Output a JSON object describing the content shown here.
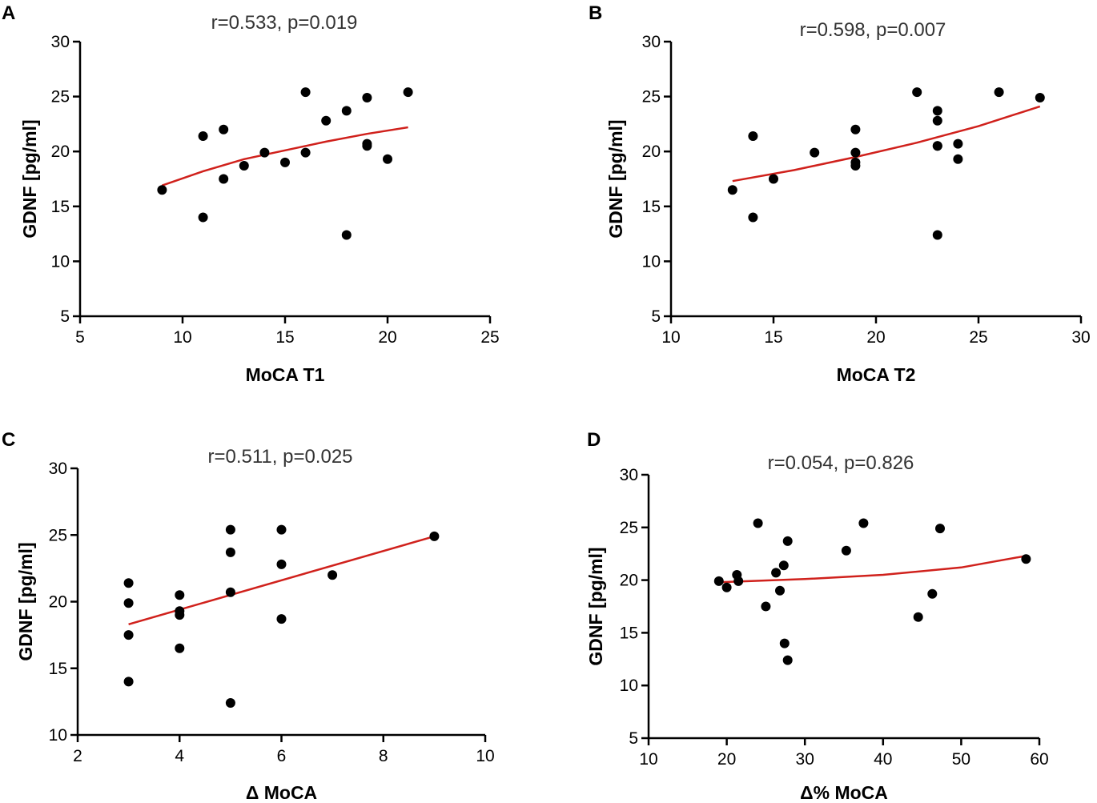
{
  "chart_data": [
    {
      "type": "scatter",
      "panel": "A",
      "title": "r=0.533, p=0.019",
      "xlabel": "MoCA  T1",
      "ylabel": "GDNF [pg/ml]",
      "xlim": [
        5,
        25
      ],
      "ylim": [
        5,
        30
      ],
      "xticks": [
        5,
        10,
        15,
        20,
        25
      ],
      "yticks": [
        5,
        10,
        15,
        20,
        25,
        30
      ],
      "x": [
        9,
        11,
        11,
        12,
        12,
        13,
        14,
        15,
        16,
        16,
        17,
        18,
        18,
        19,
        19,
        19,
        20,
        21
      ],
      "y": [
        16.5,
        21.4,
        14.0,
        22.0,
        17.5,
        18.7,
        19.9,
        19.0,
        25.4,
        19.9,
        22.8,
        23.7,
        12.4,
        24.9,
        20.5,
        20.7,
        19.3,
        25.4
      ],
      "fit": {
        "x": [
          9,
          11,
          13,
          15,
          17,
          19,
          21
        ],
        "y": [
          16.9,
          18.2,
          19.3,
          20.1,
          20.9,
          21.6,
          22.2
        ]
      }
    },
    {
      "type": "scatter",
      "panel": "B",
      "title": "r=0.598, p=0.007",
      "xlabel": "MoCA  T2",
      "ylabel": "GDNF [pg/ml]",
      "xlim": [
        10,
        30
      ],
      "ylim": [
        5,
        30
      ],
      "xticks": [
        10,
        15,
        20,
        25,
        30
      ],
      "yticks": [
        5,
        10,
        15,
        20,
        25,
        30
      ],
      "x": [
        13,
        14,
        14,
        15,
        17,
        19,
        19,
        19,
        19,
        22,
        23,
        23,
        23,
        23,
        23,
        24,
        24,
        26,
        28
      ],
      "y": [
        16.5,
        21.4,
        14.0,
        17.5,
        19.9,
        22.0,
        19.9,
        19.0,
        18.7,
        25.4,
        23.7,
        22.8,
        20.5,
        12.4,
        20.5,
        20.7,
        19.3,
        25.4,
        24.9
      ],
      "fit": {
        "x": [
          13,
          16,
          19,
          22,
          25,
          28
        ],
        "y": [
          17.3,
          18.3,
          19.5,
          20.8,
          22.3,
          24.1
        ]
      }
    },
    {
      "type": "scatter",
      "panel": "C",
      "title": "r=0.511, p=0.025",
      "xlabel": "Δ MoCA",
      "ylabel": "GDNF [pg/ml]",
      "xlim": [
        2,
        10
      ],
      "ylim": [
        10,
        30
      ],
      "xticks": [
        2,
        4,
        6,
        8,
        10
      ],
      "yticks": [
        10,
        15,
        20,
        25,
        30
      ],
      "x": [
        3,
        3,
        3,
        3,
        4,
        4,
        4,
        4,
        5,
        5,
        5,
        5,
        6,
        6,
        6,
        7,
        9
      ],
      "y": [
        21.4,
        19.9,
        17.5,
        14.0,
        20.5,
        19.3,
        19.0,
        16.5,
        25.4,
        23.7,
        20.7,
        12.4,
        25.4,
        22.8,
        18.7,
        22.0,
        24.9
      ],
      "fit": {
        "x": [
          3,
          9
        ],
        "y": [
          18.3,
          24.9
        ]
      }
    },
    {
      "type": "scatter",
      "panel": "D",
      "title": "r=0.054, p=0.826",
      "xlabel": "Δ% MoCA",
      "ylabel": "GDNF [pg/ml]",
      "xlim": [
        10,
        60
      ],
      "ylim": [
        5,
        30
      ],
      "xticks": [
        10,
        20,
        30,
        40,
        50,
        60
      ],
      "yticks": [
        5,
        10,
        15,
        20,
        25,
        30
      ],
      "x": [
        19,
        20,
        21.3,
        21.5,
        24,
        25,
        26.3,
        26.8,
        27.3,
        27.4,
        27.8,
        27.8,
        35.3,
        37.5,
        44.5,
        46.3,
        47.3,
        58.3
      ],
      "y": [
        19.9,
        19.3,
        20.5,
        19.9,
        25.4,
        17.5,
        20.7,
        19.0,
        21.4,
        14.0,
        23.7,
        12.4,
        22.8,
        25.4,
        16.5,
        18.7,
        24.9,
        22.0
      ],
      "fit": {
        "x": [
          19,
          30,
          40,
          50,
          58.3
        ],
        "y": [
          19.8,
          20.1,
          20.5,
          21.2,
          22.3
        ]
      }
    }
  ]
}
